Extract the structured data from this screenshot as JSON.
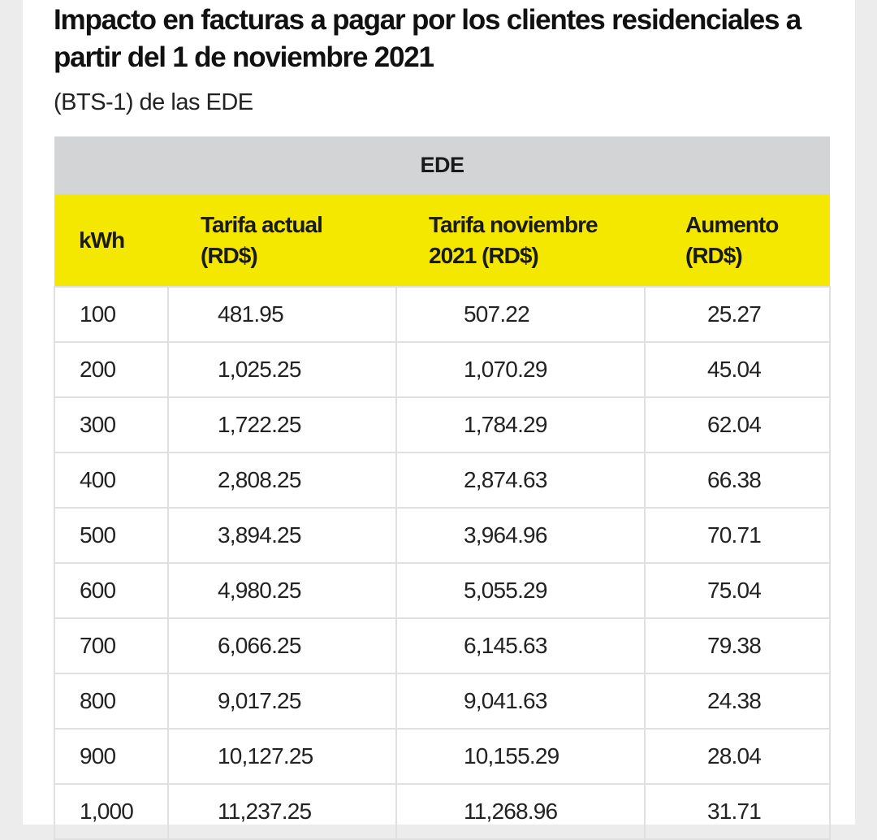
{
  "title": "Impacto en facturas a pagar por los clientes residenciales a partir del 1 de noviembre 2021",
  "subtitle": "(BTS-1) de las EDE",
  "colors": {
    "header_gray": "#d3d4d6",
    "header_yellow": "#f5e800"
  },
  "table": {
    "group_header": "EDE",
    "columns": [
      "kWh",
      "Tarifa actual (RD$)",
      "Tarifa noviembre 2021 (RD$)",
      "Aumento (RD$)"
    ],
    "rows": [
      [
        "100",
        "481.95",
        "507.22",
        "25.27"
      ],
      [
        "200",
        "1,025.25",
        "1,070.29",
        "45.04"
      ],
      [
        "300",
        "1,722.25",
        "1,784.29",
        "62.04"
      ],
      [
        "400",
        "2,808.25",
        "2,874.63",
        "66.38"
      ],
      [
        "500",
        "3,894.25",
        "3,964.96",
        "70.71"
      ],
      [
        "600",
        "4,980.25",
        "5,055.29",
        "75.04"
      ],
      [
        "700",
        "6,066.25",
        "6,145.63",
        "79.38"
      ],
      [
        "800",
        "9,017.25",
        "9,041.63",
        "24.38"
      ],
      [
        "900",
        "10,127.25",
        "10,155.29",
        "28.04"
      ],
      [
        "1,000",
        "11,237.25",
        "11,268.96",
        "31.71"
      ]
    ]
  }
}
